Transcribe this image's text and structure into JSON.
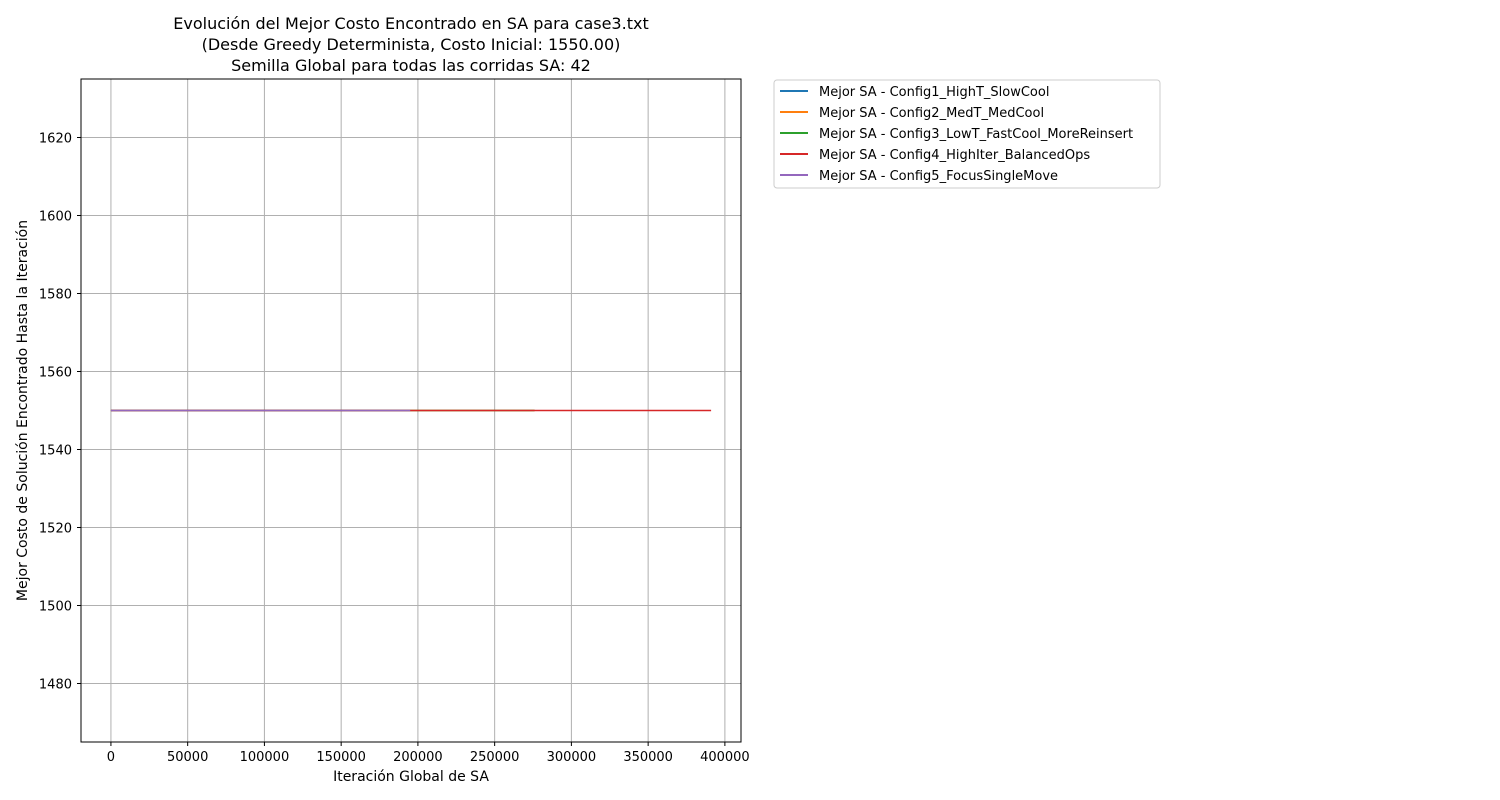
{
  "chart_data": {
    "type": "line",
    "title": [
      "Evolución del Mejor Costo Encontrado en SA para case3.txt",
      "(Desde Greedy Determinista, Costo Inicial: 1550.00)",
      "Semilla Global para todas las corridas SA: 42"
    ],
    "xlabel": "Iteración Global de SA",
    "ylabel": "Mejor Costo de Solución Encontrado Hasta la Iteración",
    "xlim": [
      -19500,
      410500
    ],
    "ylim": [
      1465,
      1635
    ],
    "xticks": [
      0,
      50000,
      100000,
      150000,
      200000,
      250000,
      300000,
      350000,
      400000
    ],
    "yticks": [
      1480,
      1500,
      1520,
      1540,
      1560,
      1580,
      1600,
      1620
    ],
    "grid": true,
    "legend_position": "outside-upper-right",
    "series": [
      {
        "name": "Mejor SA - Config1_HighT_SlowCool",
        "color": "#1f77b4",
        "x": [
          0,
          195000
        ],
        "y": [
          1550.0,
          1550.0
        ]
      },
      {
        "name": "Mejor SA - Config2_MedT_MedCool",
        "color": "#ff7f0e",
        "x": [
          0,
          276000
        ],
        "y": [
          1550.0,
          1550.0
        ]
      },
      {
        "name": "Mejor SA - Config3_LowT_FastCool_MoreReinsert",
        "color": "#2ca02c",
        "x": [
          0,
          276000
        ],
        "y": [
          1550.0,
          1550.0
        ]
      },
      {
        "name": "Mejor SA - Config4_HighIter_BalancedOps",
        "color": "#d62728",
        "x": [
          0,
          391000
        ],
        "y": [
          1550.0,
          1550.0
        ]
      },
      {
        "name": "Mejor SA - Config5_FocusSingleMove",
        "color": "#9467bd",
        "x": [
          0,
          195000
        ],
        "y": [
          1550.0,
          1550.0
        ]
      }
    ]
  }
}
